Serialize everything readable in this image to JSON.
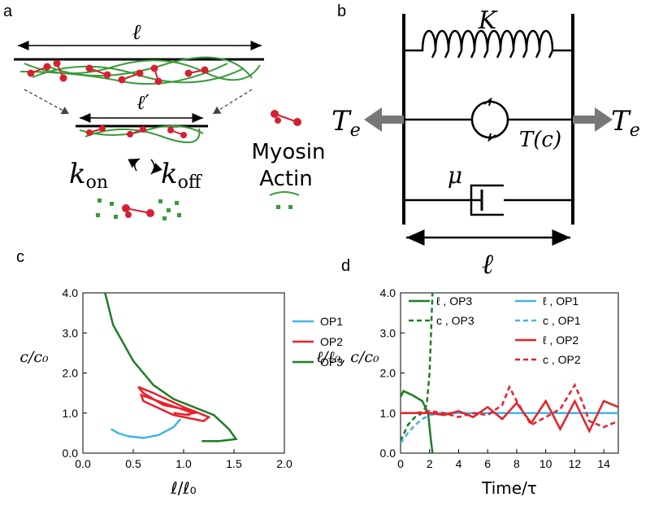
{
  "panels": {
    "a": {
      "label": "a",
      "length": "ℓ",
      "length_contracted": "ℓ′",
      "k_on": {
        "base": "k",
        "sub": "on"
      },
      "k_off": {
        "base": "k",
        "sub": "off"
      },
      "myosin": "Myosin",
      "actin": "Actin"
    },
    "b": {
      "label": "b",
      "spring": "K",
      "tension_left": {
        "base": "T",
        "sub": "e"
      },
      "tension_right": {
        "base": "T",
        "sub": "e"
      },
      "active_tension": "T(c)",
      "viscosity": "μ",
      "length": "ℓ"
    },
    "c": {
      "label": "c"
    },
    "d": {
      "label": "d"
    }
  },
  "chart_data": [
    {
      "type": "line",
      "xlabel": "ℓ/ℓ₀",
      "ylabel": "c/c₀",
      "xlim": [
        0,
        2
      ],
      "xticks": [
        {
          "value": 0,
          "label": "0.0"
        },
        {
          "value": 0.5,
          "label": "0.5"
        },
        {
          "value": 1,
          "label": "1.0"
        },
        {
          "value": 1.5,
          "label": "1.5"
        },
        {
          "value": 2,
          "label": "2.0"
        }
      ],
      "ylim": [
        0,
        4
      ],
      "yticks": [
        {
          "value": 0,
          "label": "0.0"
        },
        {
          "value": 1,
          "label": "1.0"
        },
        {
          "value": 2,
          "label": "2.0"
        },
        {
          "value": 3,
          "label": "3.0"
        },
        {
          "value": 4,
          "label": "4.0"
        }
      ],
      "series": [
        {
          "name": "OP1",
          "color": "#41b6e6",
          "dashed": false,
          "x": [
            0.28,
            0.35,
            0.45,
            0.6,
            0.75,
            0.9,
            0.97
          ],
          "values": [
            0.6,
            0.5,
            0.42,
            0.38,
            0.45,
            0.65,
            0.85
          ]
        },
        {
          "name": "OP2",
          "color": "#e8202a",
          "dashed": false,
          "x": [
            0.9,
            1.05,
            1.1,
            0.8,
            0.6,
            0.55,
            0.7,
            1.0,
            1.25,
            1.2,
            0.9,
            0.6,
            0.58,
            0.8,
            1.1,
            1.0
          ],
          "values": [
            1.0,
            0.95,
            1.05,
            1.2,
            1.5,
            1.65,
            1.5,
            1.15,
            0.9,
            0.8,
            0.95,
            1.3,
            1.45,
            1.25,
            1.0,
            0.95
          ]
        },
        {
          "name": "OP3",
          "color": "#1e7d25",
          "dashed": false,
          "x": [
            0.22,
            0.3,
            0.5,
            0.7,
            0.9,
            1.1,
            1.3,
            1.45,
            1.52,
            1.35,
            1.18
          ],
          "values": [
            4.0,
            3.2,
            2.3,
            1.7,
            1.35,
            1.15,
            0.95,
            0.6,
            0.35,
            0.3,
            0.3
          ]
        }
      ]
    },
    {
      "type": "line",
      "xlabel": "Time/τ",
      "ylabel": "ℓ/ℓ₀, c/c₀",
      "xlim": [
        0,
        15
      ],
      "xticks": [
        0,
        2,
        4,
        6,
        8,
        10,
        12,
        14
      ],
      "ylim": [
        0,
        4
      ],
      "yticks": [
        {
          "value": 0,
          "label": "0.0"
        },
        {
          "value": 1,
          "label": "1.0"
        },
        {
          "value": 2,
          "label": "2.0"
        },
        {
          "value": 3,
          "label": "3.0"
        },
        {
          "value": 4,
          "label": "4.0"
        }
      ],
      "series": [
        {
          "name": "ℓ , OP3",
          "color": "#1e7d25",
          "dashed": false,
          "x": [
            0,
            0.2,
            0.8,
            1.5,
            1.9,
            2.1,
            2.2
          ],
          "values": [
            1.4,
            1.55,
            1.45,
            1.3,
            1.0,
            0.3,
            0.0
          ]
        },
        {
          "name": "c , OP3",
          "color": "#1e7d25",
          "dashed": true,
          "x": [
            0,
            0.5,
            1,
            1.5,
            1.8,
            2.0,
            2.1,
            2.2
          ],
          "values": [
            0.3,
            0.7,
            0.9,
            1.0,
            1.2,
            2.0,
            3.0,
            4.0
          ]
        },
        {
          "name": "ℓ , OP1",
          "color": "#41b6e6",
          "dashed": false,
          "x": [
            0,
            0.5,
            1,
            2,
            15
          ],
          "values": [
            1.0,
            1.0,
            1.0,
            1.0,
            1.0
          ]
        },
        {
          "name": "c , OP1",
          "color": "#41b6e6",
          "dashed": true,
          "x": [
            0,
            0.5,
            1,
            1.5,
            2,
            3,
            15
          ],
          "values": [
            0.25,
            0.5,
            0.7,
            0.85,
            0.95,
            1.0,
            1.0
          ]
        },
        {
          "name": "ℓ , OP2",
          "color": "#e8202a",
          "dashed": false,
          "x": [
            0,
            1,
            2,
            3,
            4,
            5,
            6,
            7,
            8,
            9,
            10,
            11,
            12,
            13,
            14,
            15
          ],
          "values": [
            1.0,
            1.0,
            1.0,
            0.95,
            1.05,
            0.9,
            1.15,
            0.85,
            1.25,
            0.75,
            1.3,
            0.6,
            1.3,
            0.55,
            1.3,
            1.15
          ]
        },
        {
          "name": "c , OP2",
          "color": "#e8202a",
          "dashed": true,
          "x": [
            0,
            1,
            2,
            3,
            4,
            5,
            6,
            7,
            7.5,
            8,
            9,
            10,
            11,
            11.5,
            12,
            12.5,
            13,
            14,
            15
          ],
          "values": [
            1.0,
            1.0,
            1.05,
            1.0,
            0.9,
            1.0,
            0.95,
            1.2,
            1.65,
            1.3,
            0.7,
            0.9,
            1.1,
            1.4,
            1.7,
            1.3,
            0.8,
            0.65,
            0.8
          ]
        }
      ]
    }
  ]
}
